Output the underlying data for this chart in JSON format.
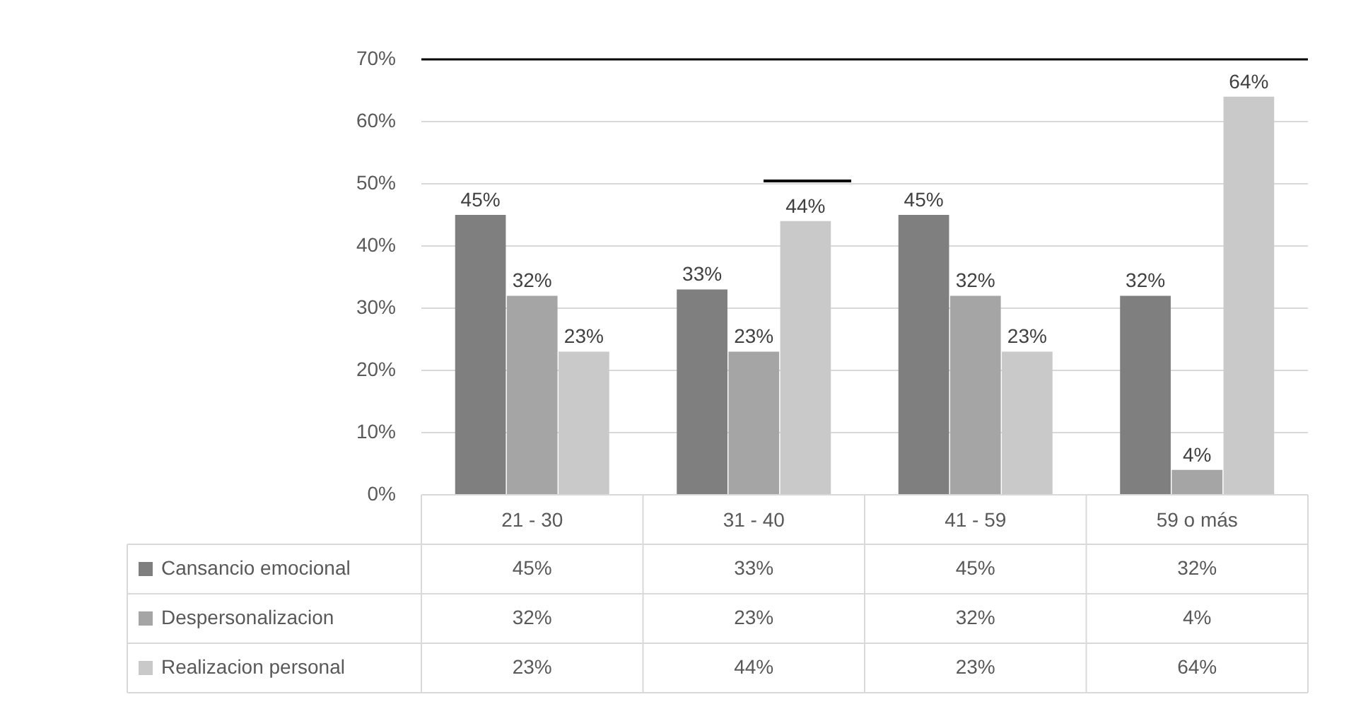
{
  "chart_data": {
    "type": "bar",
    "categories": [
      "21 - 30",
      "31 - 40",
      "41 - 59",
      "59 o más"
    ],
    "series": [
      {
        "name": "Cansancio emocional",
        "color": "#7f7f7f",
        "values": [
          45,
          33,
          45,
          32
        ],
        "value_labels": [
          "45%",
          "33%",
          "45%",
          "32%"
        ]
      },
      {
        "name": "Despersonalizacion",
        "color": "#a5a5a5",
        "values": [
          32,
          23,
          32,
          4
        ],
        "value_labels": [
          "32%",
          "23%",
          "32%",
          "4%"
        ]
      },
      {
        "name": "Realizacion personal",
        "color": "#c9c9c9",
        "values": [
          23,
          44,
          23,
          64
        ],
        "value_labels": [
          "23%",
          "44%",
          "23%",
          "64%"
        ]
      }
    ],
    "ylim": [
      0,
      70
    ],
    "yticks": [
      {
        "value": 0,
        "label": "0%"
      },
      {
        "value": 10,
        "label": "10%"
      },
      {
        "value": 20,
        "label": "20%"
      },
      {
        "value": 30,
        "label": "30%"
      },
      {
        "value": 40,
        "label": "40%"
      },
      {
        "value": 50,
        "label": "50%"
      },
      {
        "value": 60,
        "label": "60%"
      },
      {
        "value": 70,
        "label": "70%"
      }
    ],
    "grid": "y",
    "legend": "bottom",
    "data_labels": true,
    "ref_lines": [
      {
        "axis": "y",
        "value": 70,
        "color": "#000000"
      }
    ]
  }
}
